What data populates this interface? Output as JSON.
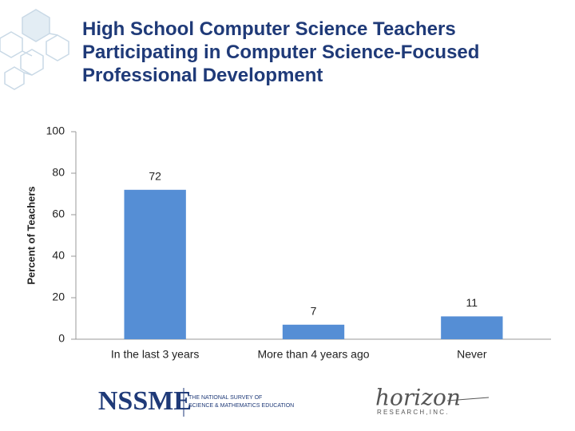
{
  "chart_data": {
    "type": "bar",
    "title": "High School Computer Science Teachers Participating in Computer Science-Focused Professional Development",
    "y_label": "Percent of Teachers",
    "categories": [
      "In the last 3 years",
      "More than 4 years ago",
      "Never"
    ],
    "values": [
      72,
      7,
      11
    ],
    "color": "#558ed5",
    "ylim": [
      0,
      100
    ],
    "yticks": [
      0,
      20,
      40,
      60,
      80,
      100
    ],
    "grid": false
  },
  "footer": {
    "logo": "NSSME",
    "logo_caption_1": "THE NATIONAL SURVEY OF",
    "logo_caption_2": "SCIENCE & MATHEMATICS EDUCATION",
    "partner": "horizon",
    "partner_caption": "R E S E A R C H ,  I N C ."
  }
}
